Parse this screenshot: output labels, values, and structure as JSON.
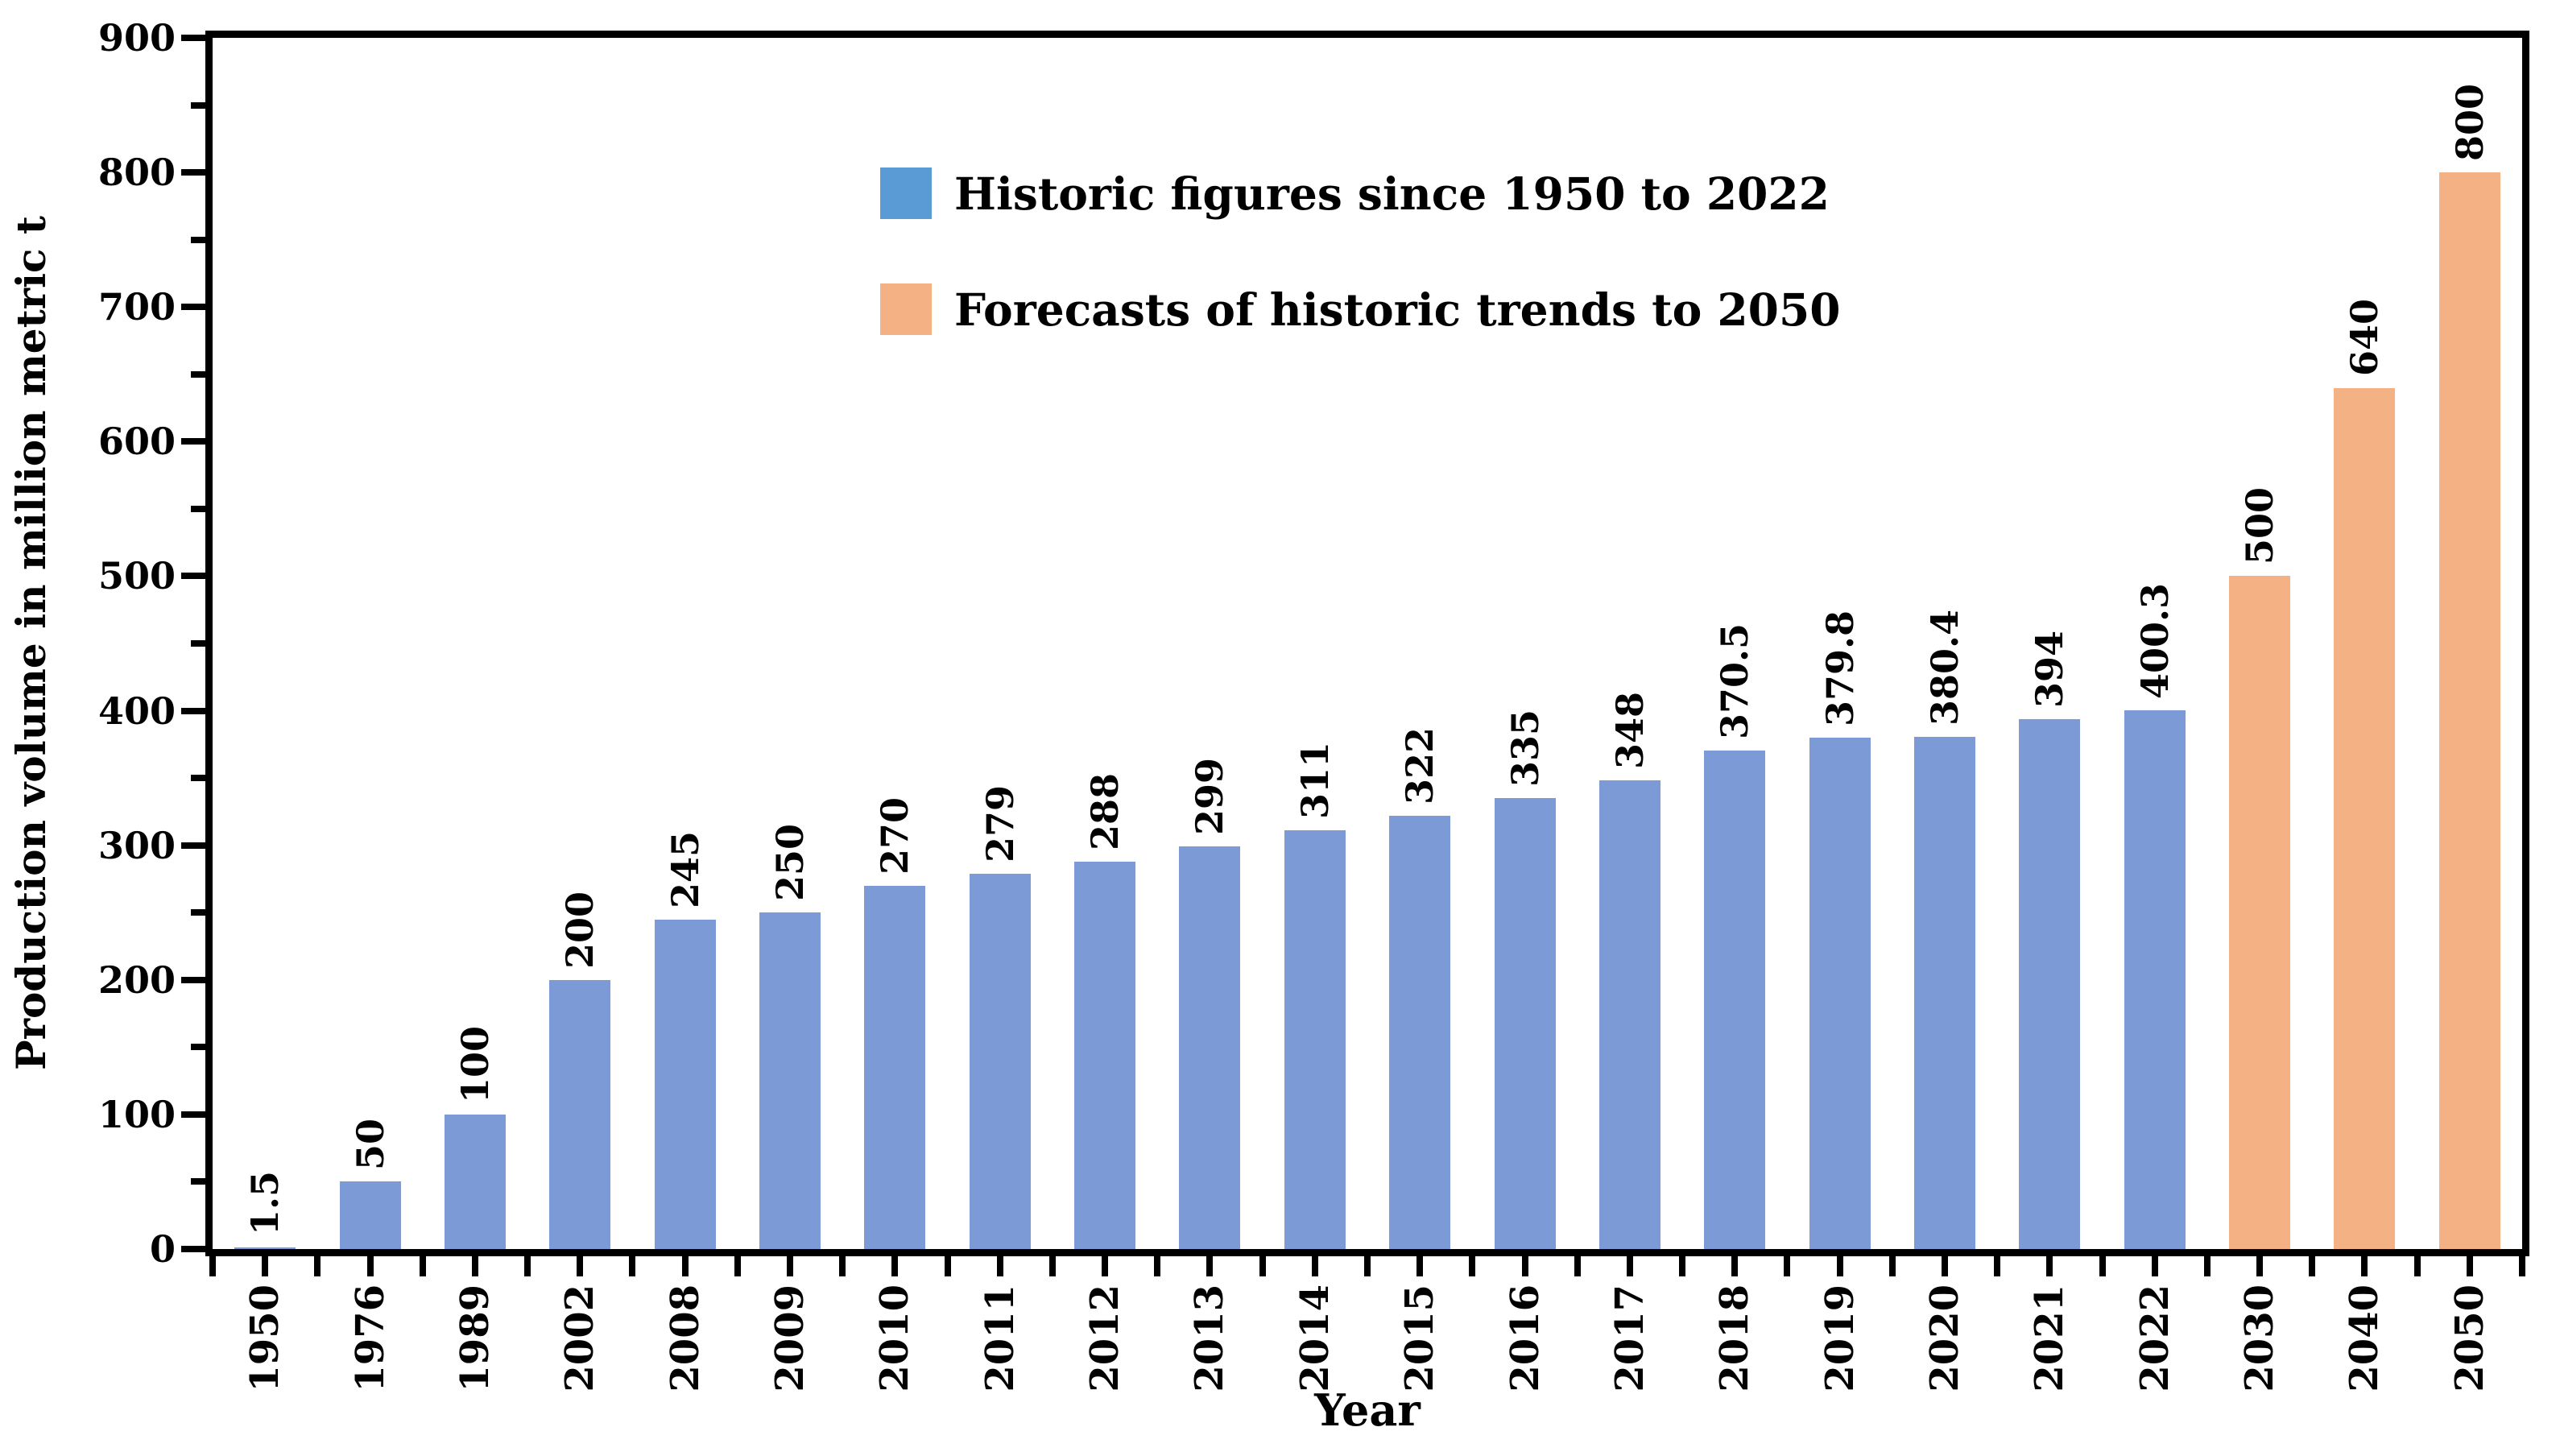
{
  "figure": {
    "background": "#ffffff",
    "axis_color": "#000000",
    "text_color": "#000000"
  },
  "legend": {
    "items": [
      {
        "label": "Historic figures since 1950 to 2022",
        "swatch_color": "#5B9BD5"
      },
      {
        "label": "Forecasts of historic trends to 2050",
        "swatch_color": "#F4B183"
      }
    ]
  },
  "chart_data": {
    "type": "bar",
    "title": "",
    "xlabel": "Year",
    "ylabel": "Production volume in million metric t",
    "categories": [
      "1950",
      "1976",
      "1989",
      "2002",
      "2008",
      "2009",
      "2010",
      "2011",
      "2012",
      "2013",
      "2014",
      "2015",
      "2016",
      "2017",
      "2018",
      "2019",
      "2020",
      "2021",
      "2022",
      "2030",
      "2040",
      "2050"
    ],
    "series": [
      {
        "name": "Historic figures since 1950 to 2022",
        "color": "#7C9AD6",
        "start_index": 0,
        "values": [
          1.5,
          50,
          100,
          200,
          245,
          250,
          270,
          279,
          288,
          299,
          311,
          322,
          335,
          348,
          370.5,
          379.8,
          380.4,
          394,
          400.3
        ]
      },
      {
        "name": "Forecasts of historic trends to 2050",
        "color": "#F4B183",
        "start_index": 19,
        "values": [
          500,
          640,
          800
        ]
      }
    ],
    "data_labels": [
      "1.5",
      "50",
      "100",
      "200",
      "245",
      "250",
      "270",
      "279",
      "288",
      "299",
      "311",
      "322",
      "335",
      "348",
      "370.5",
      "379.8",
      "380.4",
      "394",
      "400.3",
      "500",
      "640",
      "800"
    ],
    "ylim": [
      0,
      900
    ],
    "y_tick_interval": 100,
    "y_minor_tick_interval": 50,
    "grid": false,
    "legend_position": "top-left-inside",
    "bar_label_rotation": -90,
    "x_label_rotation": -90
  }
}
